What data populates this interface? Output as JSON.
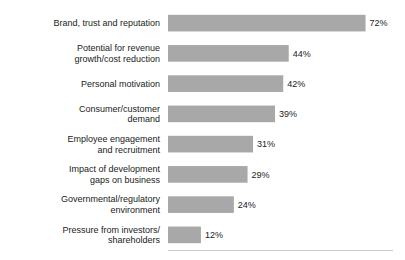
{
  "chart_data": {
    "type": "bar",
    "orientation": "horizontal",
    "categories": [
      "Pressure from investors/\nshareholders",
      "Governmental/regulatory\nenvironment",
      "Impact of development\ngaps on business",
      "Employee engagement\nand recruitment",
      "Consumer/customer\ndemand",
      "Personal motivation",
      "Potential for revenue\ngrowth/cost reduction",
      "Brand, trust and reputation"
    ],
    "values": [
      12,
      24,
      29,
      31,
      39,
      42,
      44,
      72
    ],
    "value_labels": [
      "12%",
      "24%",
      "29%",
      "31%",
      "39%",
      "42%",
      "44%",
      "72%"
    ],
    "color": "#a8a8a8",
    "xlim": [
      0,
      82
    ],
    "grid": false,
    "data_labels": true,
    "tick_labels": false
  }
}
